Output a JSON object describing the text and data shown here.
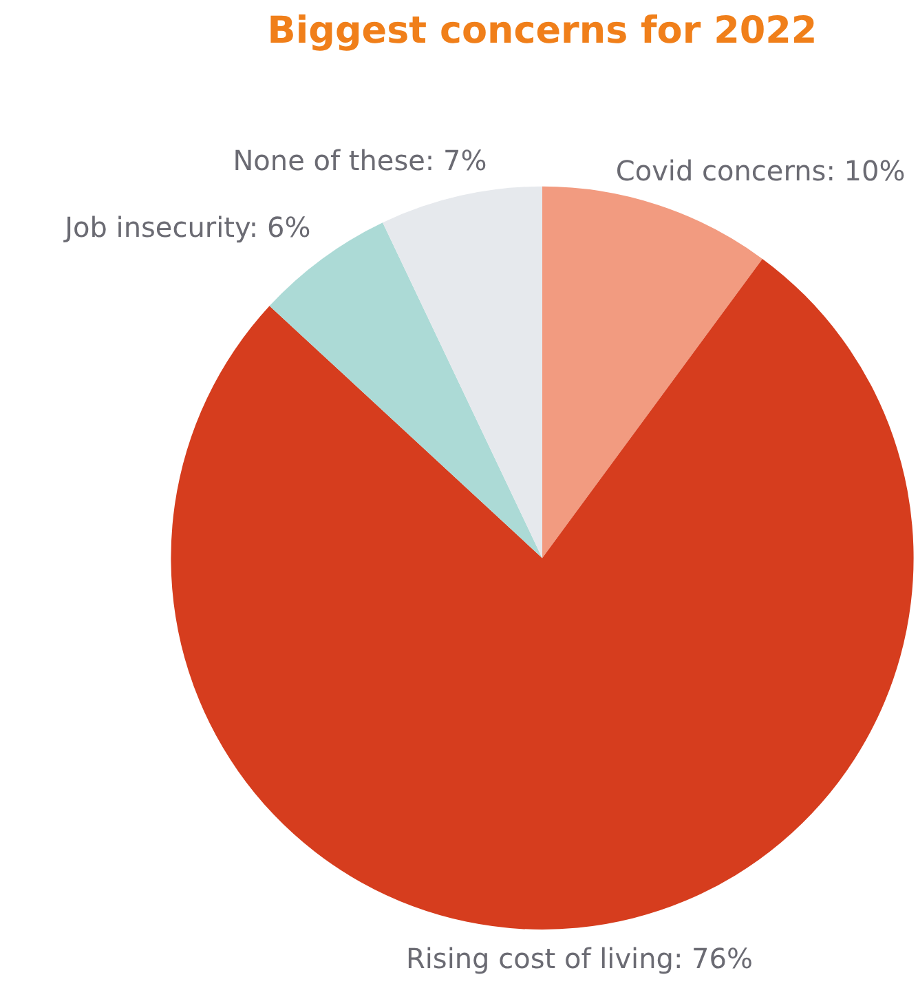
{
  "chart_data": {
    "type": "pie",
    "title": "Biggest concerns for 2022",
    "categories": [
      "Covid concerns",
      "Rising cost of living",
      "Job insecurity",
      "None of these"
    ],
    "values": [
      10,
      76,
      6,
      7
    ],
    "value_labels": [
      "10%",
      "76%",
      "6%",
      "7%"
    ],
    "colors": [
      "#f29b80",
      "#d63d1e",
      "#acdad6",
      "#e6e9ed"
    ],
    "legend": false
  }
}
